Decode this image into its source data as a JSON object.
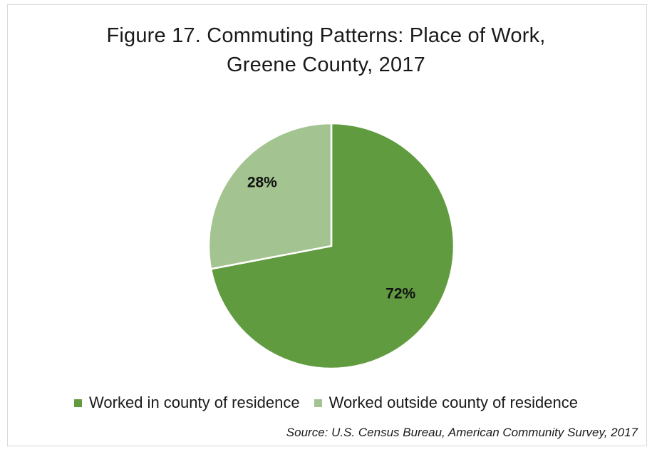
{
  "chart_data": {
    "type": "pie",
    "title_lines": [
      "Figure 17. Commuting Patterns: Place of Work,",
      "Greene County, 2017"
    ],
    "categories": [
      "Worked in county of residence",
      "Worked outside county of residence"
    ],
    "values": [
      72,
      28
    ],
    "data_labels": [
      "72%",
      "28%"
    ],
    "colors": [
      "#619b3f",
      "#a3c490"
    ],
    "legend_position": "bottom",
    "source": "Source: U.S. Census Bureau, American Community Survey, 2017"
  }
}
